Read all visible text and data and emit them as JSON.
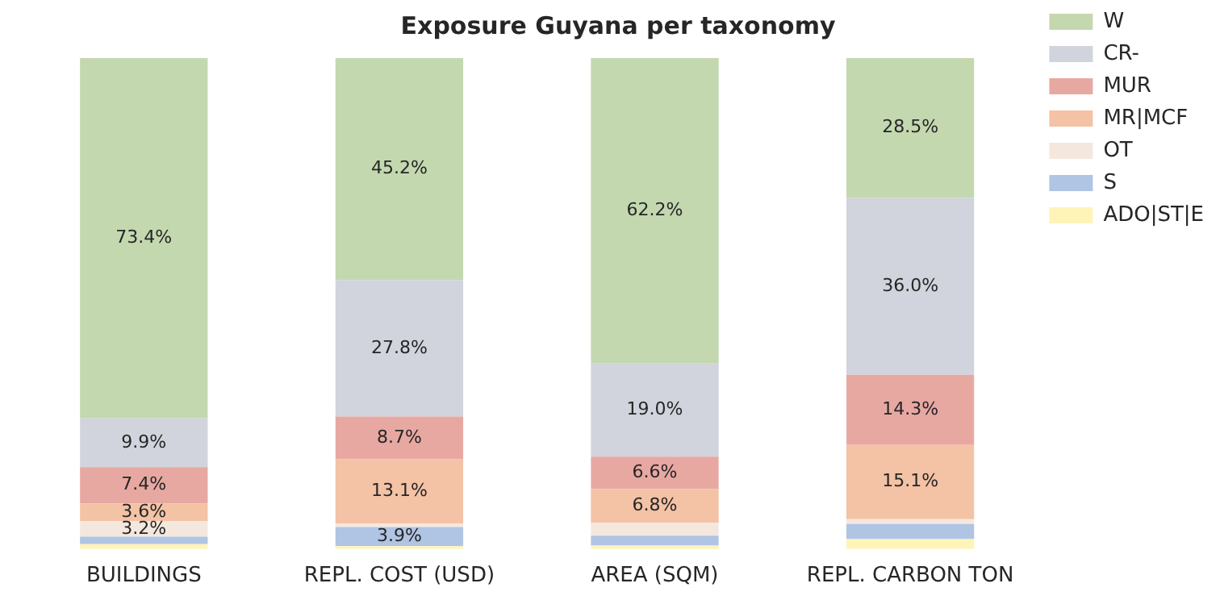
{
  "chart_data": {
    "type": "bar",
    "title": "Exposure Guyana per taxonomy",
    "categories": [
      "BUILDINGS",
      "REPL. COST (USD)",
      "AREA (SQM)",
      "REPL. CARBON TON"
    ],
    "stacked": true,
    "ylim": [
      0,
      100
    ],
    "tick_labels": "x",
    "grid": false,
    "legend": "top right",
    "series": [
      {
        "name": "ADO|ST|E",
        "color": "#fff4b8",
        "values": [
          1.0,
          0.6,
          0.7,
          2.0
        ],
        "value_labels": [
          null,
          null,
          null,
          null
        ]
      },
      {
        "name": "S",
        "color": "#b0c4e4",
        "values": [
          1.5,
          3.9,
          2.0,
          3.1
        ],
        "value_labels": [
          null,
          "3.9%",
          null,
          null
        ]
      },
      {
        "name": "OT",
        "color": "#f4e8de",
        "values": [
          3.2,
          0.7,
          2.7,
          1.0
        ],
        "value_labels": [
          "3.2%",
          null,
          null,
          null
        ]
      },
      {
        "name": "MR|MCF",
        "color": "#f4c2a5",
        "values": [
          3.6,
          13.1,
          6.8,
          15.1
        ],
        "value_labels": [
          "3.6%",
          "13.1%",
          "6.8%",
          "15.1%"
        ]
      },
      {
        "name": "MUR",
        "color": "#e8a8a2",
        "values": [
          7.4,
          8.7,
          6.6,
          14.3
        ],
        "value_labels": [
          "7.4%",
          "8.7%",
          "6.6%",
          "14.3%"
        ]
      },
      {
        "name": "CR-",
        "color": "#d1d4dc",
        "values": [
          9.9,
          27.8,
          19.0,
          36.0
        ],
        "value_labels": [
          "9.9%",
          "27.8%",
          "19.0%",
          "36.0%"
        ]
      },
      {
        "name": "W",
        "color": "#c4d8b0",
        "values": [
          73.4,
          45.2,
          62.2,
          28.5
        ],
        "value_labels": [
          "73.4%",
          "45.2%",
          "62.2%",
          "28.5%"
        ]
      }
    ]
  }
}
